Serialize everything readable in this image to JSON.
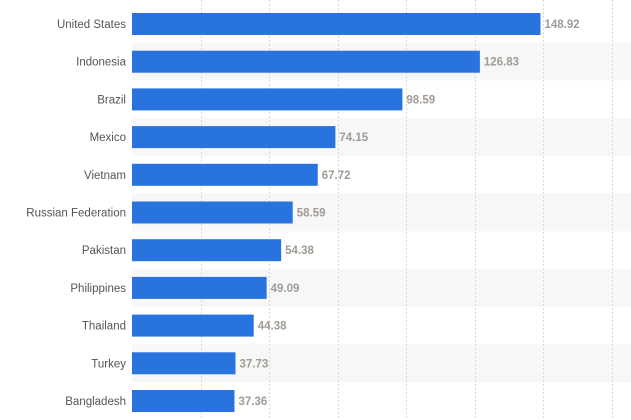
{
  "chart_data": {
    "type": "bar",
    "orientation": "horizontal",
    "categories": [
      "United States",
      "Indonesia",
      "Brazil",
      "Mexico",
      "Vietnam",
      "Russian Federation",
      "Pakistan",
      "Philippines",
      "Thailand",
      "Turkey",
      "Bangladesh"
    ],
    "values": [
      148.92,
      126.83,
      98.59,
      74.15,
      67.72,
      58.59,
      54.38,
      49.09,
      44.38,
      37.73,
      37.36
    ],
    "value_labels": [
      "148.92",
      "126.83",
      "98.59",
      "74.15",
      "67.72",
      "58.59",
      "54.38",
      "49.09",
      "44.38",
      "37.73",
      "37.36"
    ],
    "title": "",
    "xlabel": "",
    "ylabel": "",
    "xlim": [
      0,
      175
    ],
    "grid": true,
    "bar_color": "#2873de",
    "label_color": "#a09b94",
    "band_color": "#f7f7f7",
    "grid_color": "#d8d8d8"
  }
}
